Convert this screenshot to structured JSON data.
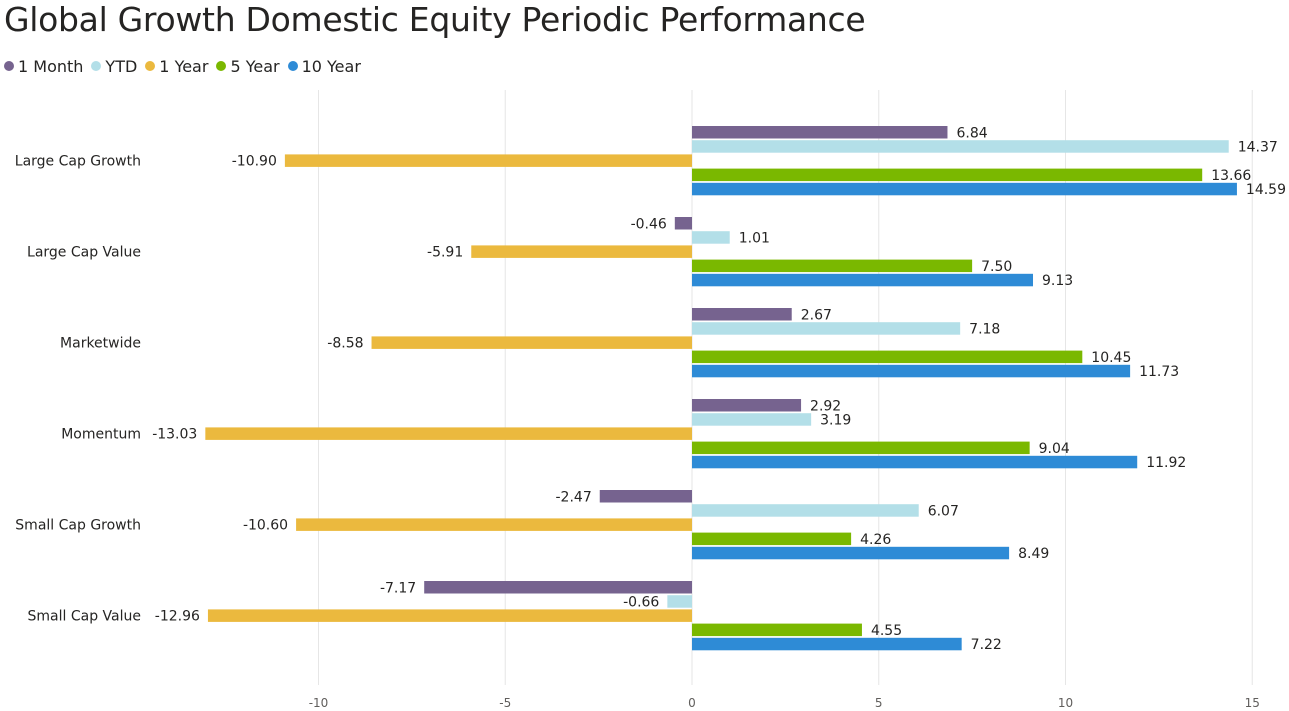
{
  "chart_data": {
    "type": "bar",
    "orientation": "horizontal",
    "title": "Global Growth Domestic Equity Periodic Performance",
    "categories": [
      "Large Cap Growth",
      "Large Cap Value",
      "Marketwide",
      "Momentum",
      "Small Cap Growth",
      "Small Cap Value"
    ],
    "series": [
      {
        "name": "1 Month",
        "color": "#76638f",
        "values": [
          6.84,
          -0.46,
          2.67,
          2.92,
          -2.47,
          -7.17
        ],
        "labels": [
          "6.84",
          "-0.46",
          "2.67",
          "2.92",
          "-2.47",
          "-7.17"
        ]
      },
      {
        "name": "YTD",
        "color": "#b3dfe8",
        "values": [
          14.37,
          1.01,
          7.18,
          3.19,
          6.07,
          -0.66
        ],
        "labels": [
          "14.37",
          "1.01",
          "7.18",
          "3.19",
          "6.07",
          "-0.66"
        ]
      },
      {
        "name": "1 Year",
        "color": "#ebb93e",
        "values": [
          -10.9,
          -5.91,
          -8.58,
          -13.03,
          -10.6,
          -12.96
        ],
        "labels": [
          "-10.90",
          "-5.91",
          "-8.58",
          "-13.03",
          "-10.60",
          "-12.96"
        ]
      },
      {
        "name": "5 Year",
        "color": "#7ab800",
        "values": [
          13.66,
          7.5,
          10.45,
          9.04,
          4.26,
          4.55
        ],
        "labels": [
          "13.66",
          "7.50",
          "10.45",
          "9.04",
          "4.26",
          "4.55"
        ]
      },
      {
        "name": "10 Year",
        "color": "#2e8bd6",
        "values": [
          14.59,
          9.13,
          11.73,
          11.92,
          8.49,
          7.22
        ],
        "labels": [
          "14.59",
          "9.13",
          "11.73",
          "11.92",
          "8.49",
          "7.22"
        ]
      }
    ],
    "x_ticks": [
      -10,
      -5,
      0,
      5,
      10,
      15
    ],
    "x_tick_labels": [
      "-10",
      "-5",
      "0",
      "5",
      "10",
      "15"
    ],
    "xlim": [
      -18.6,
      15.6
    ],
    "xlabel": "",
    "ylabel": "",
    "grid": "vertical",
    "legend_position": "top-left",
    "gridline_color": "#e6e6e6"
  }
}
